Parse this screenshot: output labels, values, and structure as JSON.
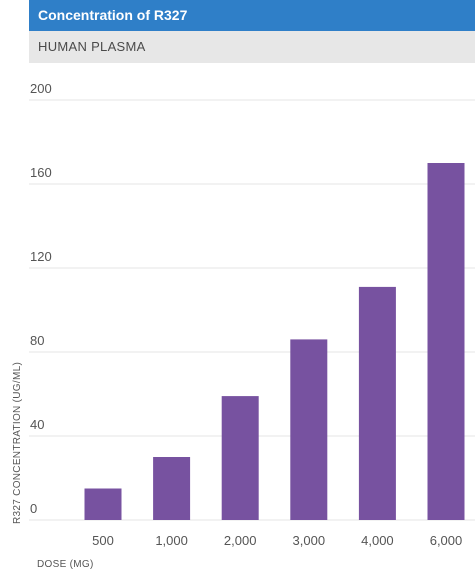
{
  "header": {
    "title": "Concentration of R327",
    "subtitle": "HUMAN PLASMA"
  },
  "chart_data": {
    "type": "bar",
    "title": "Concentration of R327",
    "subtitle": "HUMAN PLASMA",
    "xlabel": "DOSE (MG)",
    "ylabel": "R327 CONCENTRATION (UG/ML)",
    "categories": [
      "500",
      "1,000",
      "2,000",
      "3,000",
      "4,000",
      "6,000"
    ],
    "values": [
      15,
      30,
      59,
      86,
      111,
      170
    ],
    "ylim": [
      0,
      200
    ],
    "yticks": [
      {
        "value": 0,
        "label": "0"
      },
      {
        "value": 40,
        "label": "40"
      },
      {
        "value": 80,
        "label": "80"
      },
      {
        "value": 120,
        "label": "120"
      },
      {
        "value": 160,
        "label": "160"
      },
      {
        "value": 200,
        "label": "200"
      }
    ],
    "grid": true,
    "bar_color": "#7752a0",
    "grid_color": "#e4e4e4"
  }
}
